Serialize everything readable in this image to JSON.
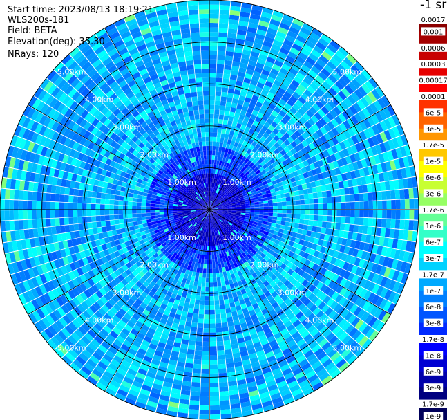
{
  "header": {
    "start_time": "Start time: 2023/08/13 18:19:21",
    "instrument": "WLS200s-181",
    "field": "Field: BETA",
    "elevation": "Elevation(deg): 35.30",
    "nrays": "NRays: 120"
  },
  "colorbar": {
    "title": "-1 sr",
    "labels": [
      "0.0017",
      "0.001",
      "0.0006",
      "0.0003",
      "0.00017",
      "0.0001",
      "6e-5",
      "3e-5",
      "1.7e-5",
      "1e-5",
      "6e-6",
      "3e-6",
      "1.7e-6",
      "1e-6",
      "6e-7",
      "3e-7",
      "1.7e-7",
      "1e-7",
      "6e-8",
      "3e-8",
      "1.7e-8",
      "1e-8",
      "6e-9",
      "3e-9",
      "1.7e-9",
      "1e-9"
    ],
    "colors": [
      "#8b0000",
      "#a50000",
      "#c80000",
      "#e60000",
      "#ff0000",
      "#ff3200",
      "#ff6400",
      "#ff9600",
      "#ffc800",
      "#ffff00",
      "#c8ff32",
      "#96ff64",
      "#64ff96",
      "#32ffc8",
      "#00ffff",
      "#00d2ff",
      "#00aaff",
      "#0080ff",
      "#0055ff",
      "#002aff",
      "#0000ff",
      "#0000d2",
      "#0000aa",
      "#000080",
      "#00005a"
    ]
  },
  "chart_data": {
    "type": "heatmap",
    "projection": "polar PPI",
    "n_rays": 120,
    "range_rings_km": [
      1.0,
      2.0,
      3.0,
      4.0,
      5.0
    ],
    "ring_labels": [
      "1.00km",
      "2.00km",
      "3.00km",
      "4.00km",
      "5.00km"
    ],
    "max_range_km": 5.0,
    "colorscale": "jet, log scale",
    "value_range": [
      1e-09,
      0.0017
    ],
    "grid": true
  }
}
